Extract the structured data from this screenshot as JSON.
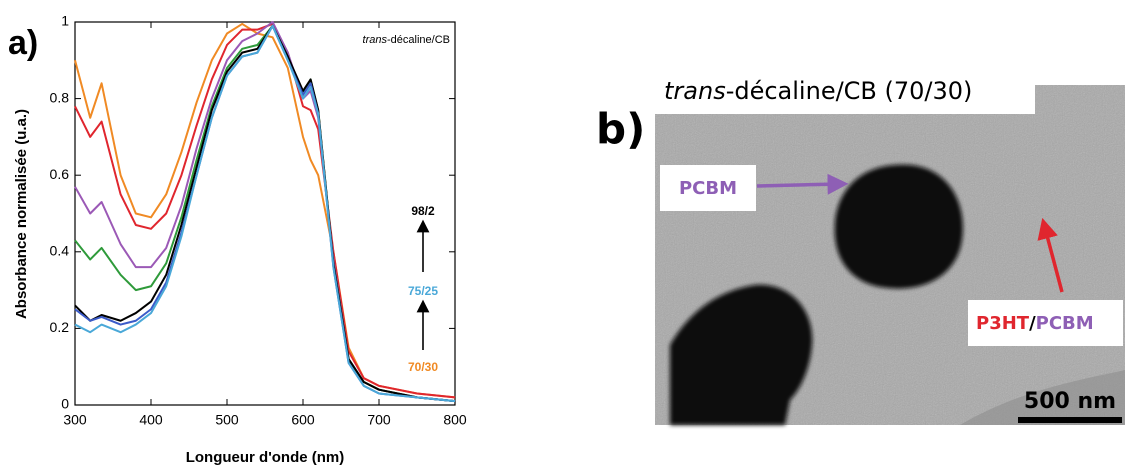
{
  "chart_data": {
    "type": "line",
    "panel_label": "a)",
    "x_label": "Longueur d'onde (nm)",
    "y_label": "Absorbance normalisée (u.a.)",
    "annotation_italic": "trans",
    "annotation": "-décaline/CB",
    "ratio_labels": [
      {
        "text": "98/2",
        "color": "#000000"
      },
      {
        "text": "75/25",
        "color": "#4aa8d8"
      },
      {
        "text": "70/30",
        "color": "#f08a24"
      }
    ],
    "x": [
      300,
      320,
      335,
      360,
      380,
      400,
      420,
      440,
      460,
      480,
      500,
      520,
      540,
      560,
      580,
      600,
      610,
      620,
      640,
      660,
      680,
      700,
      750,
      800
    ],
    "series": [
      {
        "color": "#f08a24",
        "values": [
          0.9,
          0.75,
          0.84,
          0.6,
          0.5,
          0.49,
          0.55,
          0.66,
          0.79,
          0.9,
          0.97,
          0.995,
          0.97,
          0.96,
          0.88,
          0.7,
          0.64,
          0.6,
          0.4,
          0.15,
          0.07,
          0.05,
          0.03,
          0.02
        ]
      },
      {
        "color": "#e0262e",
        "values": [
          0.78,
          0.7,
          0.74,
          0.55,
          0.47,
          0.46,
          0.5,
          0.6,
          0.73,
          0.85,
          0.94,
          0.98,
          0.98,
          0.995,
          0.92,
          0.78,
          0.77,
          0.72,
          0.4,
          0.14,
          0.07,
          0.05,
          0.03,
          0.02
        ]
      },
      {
        "color": "#9b59b6",
        "values": [
          0.57,
          0.5,
          0.53,
          0.42,
          0.36,
          0.36,
          0.41,
          0.52,
          0.67,
          0.8,
          0.9,
          0.95,
          0.97,
          1.0,
          0.92,
          0.8,
          0.82,
          0.75,
          0.38,
          0.12,
          0.06,
          0.04,
          0.02,
          0.01
        ]
      },
      {
        "color": "#2e9a3a",
        "values": [
          0.43,
          0.38,
          0.41,
          0.34,
          0.3,
          0.31,
          0.37,
          0.49,
          0.64,
          0.78,
          0.88,
          0.93,
          0.94,
          0.99,
          0.91,
          0.81,
          0.85,
          0.77,
          0.37,
          0.12,
          0.06,
          0.04,
          0.02,
          0.01
        ]
      },
      {
        "color": "#000000",
        "values": [
          0.26,
          0.22,
          0.235,
          0.22,
          0.24,
          0.27,
          0.34,
          0.47,
          0.62,
          0.77,
          0.87,
          0.92,
          0.93,
          0.99,
          0.91,
          0.82,
          0.85,
          0.77,
          0.37,
          0.12,
          0.06,
          0.04,
          0.02,
          0.01
        ]
      },
      {
        "color": "#3b5bc9",
        "values": [
          0.25,
          0.22,
          0.23,
          0.21,
          0.22,
          0.25,
          0.32,
          0.45,
          0.6,
          0.75,
          0.86,
          0.91,
          0.92,
          0.99,
          0.9,
          0.81,
          0.84,
          0.76,
          0.36,
          0.11,
          0.05,
          0.03,
          0.02,
          0.01
        ]
      },
      {
        "color": "#4aa8d8",
        "values": [
          0.21,
          0.19,
          0.21,
          0.19,
          0.21,
          0.24,
          0.31,
          0.44,
          0.6,
          0.75,
          0.86,
          0.91,
          0.92,
          0.99,
          0.9,
          0.8,
          0.83,
          0.76,
          0.36,
          0.11,
          0.05,
          0.03,
          0.02,
          0.01
        ]
      }
    ],
    "xlim": [
      300,
      800
    ],
    "ylim": [
      0,
      1
    ],
    "xticks": [
      300,
      400,
      500,
      600,
      700,
      800
    ],
    "yticks": [
      0,
      0.2,
      0.4,
      0.6,
      0.8,
      1
    ]
  },
  "image_panel": {
    "panel_label": "b)",
    "title_italic": "trans",
    "title": "-décaline/CB (70/30)",
    "pcbm_label": "PCBM",
    "blend_label_a": "P3HT",
    "blend_separator": "/",
    "blend_label_b": "PCBM",
    "scale_bar": "500 nm"
  }
}
